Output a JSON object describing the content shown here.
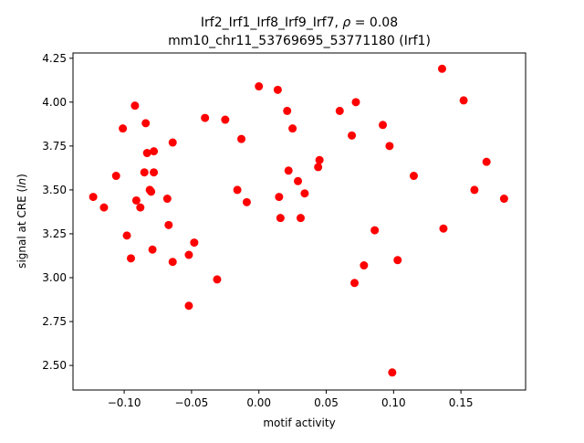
{
  "chart_data": {
    "type": "scatter",
    "title_line1_prefix": "Irf2_Irf1_Irf8_Irf9_Irf7, ",
    "title_line1_rho": "ρ",
    "title_line1_suffix": " = 0.08",
    "title_line2": "mm10_chr11_53769695_53771180 (Irf1)",
    "xlabel": "motif activity",
    "ylabel_prefix": "signal at CRE (",
    "ylabel_italic": "ln",
    "ylabel_suffix": ")",
    "xlim": [
      -0.138,
      0.198
    ],
    "ylim": [
      2.36,
      4.28
    ],
    "xticks": [
      -0.1,
      -0.05,
      0.0,
      0.05,
      0.1,
      0.15
    ],
    "xtick_labels": [
      "−0.10",
      "−0.05",
      "0.00",
      "0.05",
      "0.10",
      "0.15"
    ],
    "yticks": [
      2.5,
      2.75,
      3.0,
      3.25,
      3.5,
      3.75,
      4.0,
      4.25
    ],
    "ytick_labels": [
      "2.50",
      "2.75",
      "3.00",
      "3.25",
      "3.50",
      "3.75",
      "4.00",
      "4.25"
    ],
    "grid": false,
    "marker_color": "#ff0000",
    "points": [
      {
        "x": -0.123,
        "y": 3.46
      },
      {
        "x": -0.115,
        "y": 3.4
      },
      {
        "x": -0.106,
        "y": 3.58
      },
      {
        "x": -0.101,
        "y": 3.85
      },
      {
        "x": -0.098,
        "y": 3.24
      },
      {
        "x": -0.095,
        "y": 3.11
      },
      {
        "x": -0.092,
        "y": 3.98
      },
      {
        "x": -0.091,
        "y": 3.44
      },
      {
        "x": -0.088,
        "y": 3.4
      },
      {
        "x": -0.085,
        "y": 3.6
      },
      {
        "x": -0.084,
        "y": 3.88
      },
      {
        "x": -0.083,
        "y": 3.71
      },
      {
        "x": -0.081,
        "y": 3.5
      },
      {
        "x": -0.08,
        "y": 3.49
      },
      {
        "x": -0.079,
        "y": 3.16
      },
      {
        "x": -0.078,
        "y": 3.6
      },
      {
        "x": -0.078,
        "y": 3.72
      },
      {
        "x": -0.068,
        "y": 3.45
      },
      {
        "x": -0.067,
        "y": 3.3
      },
      {
        "x": -0.064,
        "y": 3.77
      },
      {
        "x": -0.064,
        "y": 3.09
      },
      {
        "x": -0.052,
        "y": 3.13
      },
      {
        "x": -0.052,
        "y": 2.84
      },
      {
        "x": -0.048,
        "y": 3.2
      },
      {
        "x": -0.04,
        "y": 3.91
      },
      {
        "x": -0.031,
        "y": 2.99
      },
      {
        "x": -0.025,
        "y": 3.9
      },
      {
        "x": -0.016,
        "y": 3.5
      },
      {
        "x": -0.013,
        "y": 3.79
      },
      {
        "x": -0.009,
        "y": 3.43
      },
      {
        "x": 0.0,
        "y": 4.09
      },
      {
        "x": 0.014,
        "y": 4.07
      },
      {
        "x": 0.015,
        "y": 3.46
      },
      {
        "x": 0.016,
        "y": 3.34
      },
      {
        "x": 0.021,
        "y": 3.95
      },
      {
        "x": 0.022,
        "y": 3.61
      },
      {
        "x": 0.025,
        "y": 3.85
      },
      {
        "x": 0.029,
        "y": 3.55
      },
      {
        "x": 0.031,
        "y": 3.34
      },
      {
        "x": 0.034,
        "y": 3.48
      },
      {
        "x": 0.044,
        "y": 3.63
      },
      {
        "x": 0.045,
        "y": 3.67
      },
      {
        "x": 0.06,
        "y": 3.95
      },
      {
        "x": 0.069,
        "y": 3.81
      },
      {
        "x": 0.071,
        "y": 2.97
      },
      {
        "x": 0.072,
        "y": 4.0
      },
      {
        "x": 0.078,
        "y": 3.07
      },
      {
        "x": 0.086,
        "y": 3.27
      },
      {
        "x": 0.092,
        "y": 3.87
      },
      {
        "x": 0.097,
        "y": 3.75
      },
      {
        "x": 0.099,
        "y": 2.46
      },
      {
        "x": 0.103,
        "y": 3.1
      },
      {
        "x": 0.115,
        "y": 3.58
      },
      {
        "x": 0.136,
        "y": 4.19
      },
      {
        "x": 0.137,
        "y": 3.28
      },
      {
        "x": 0.152,
        "y": 4.01
      },
      {
        "x": 0.16,
        "y": 3.5
      },
      {
        "x": 0.169,
        "y": 3.66
      },
      {
        "x": 0.182,
        "y": 3.45
      }
    ]
  }
}
